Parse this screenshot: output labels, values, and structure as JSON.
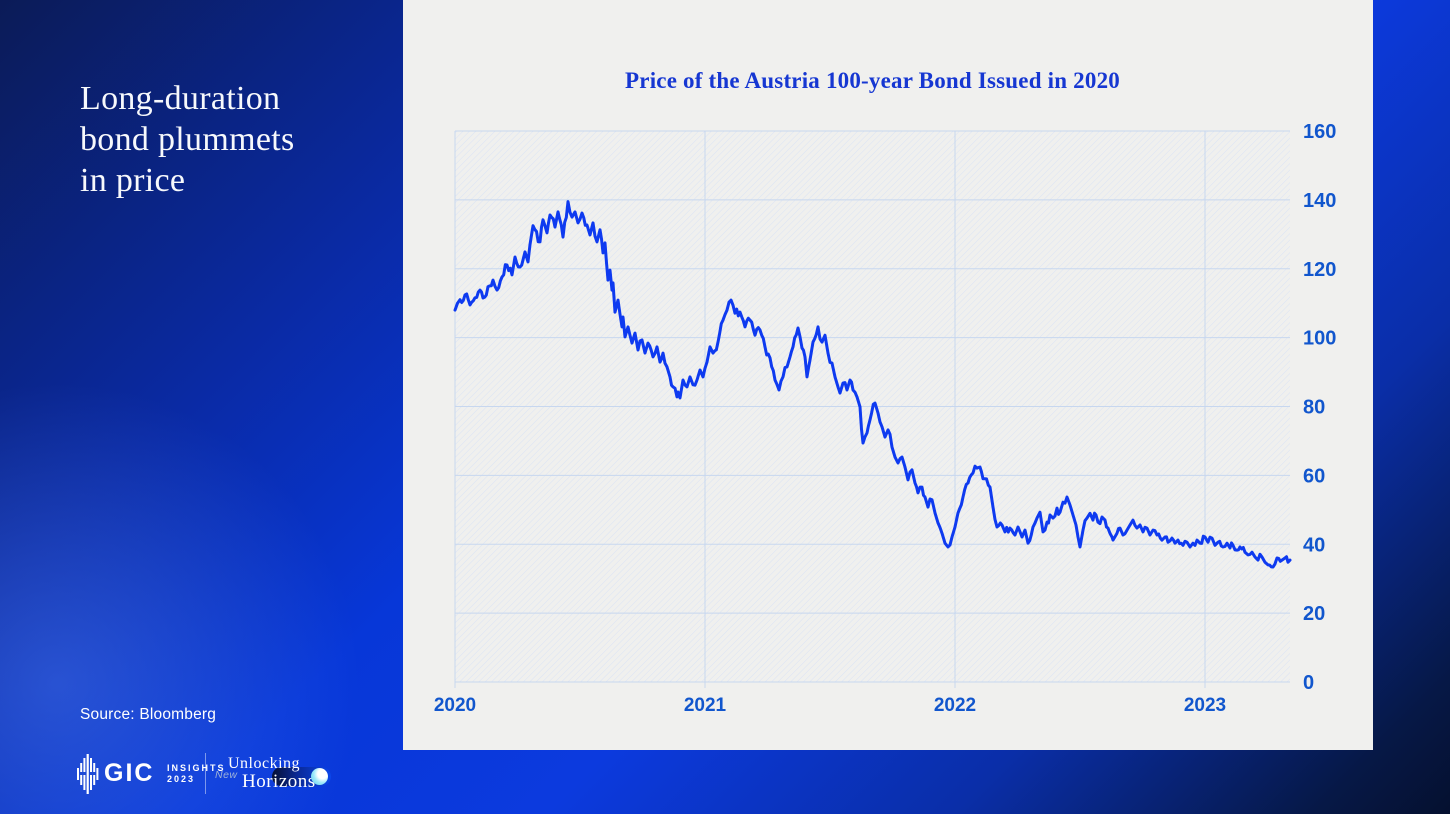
{
  "slide": {
    "headline_lines": [
      "Long-duration",
      "bond plummets",
      "in price"
    ],
    "source": "Source: Bloomberg",
    "footer": {
      "gic_wordmark": "GIC",
      "insights_line1": "INSIGHTS",
      "insights_line2": "2023",
      "tagline_word1": "Unlocking",
      "tagline_word2": "New",
      "tagline_word3": "Horizons"
    },
    "colors": {
      "background_dark": "#0b1b57",
      "background_bright": "#0c3ade",
      "panel_background": "#f0f0ee",
      "headline_text": "#f7f9fc"
    }
  },
  "chart_data": {
    "type": "line",
    "title": "Price of the Austria 100-year Bond Issued in 2020",
    "title_color": "#1637d2",
    "line_color": "#0e3af0",
    "grid_color": "#c7d7ef",
    "hatch_color": "#dbe3f4",
    "axis_label_color": "#1156cd",
    "ylim": [
      0,
      160
    ],
    "y_ticks": [
      0,
      20,
      40,
      60,
      80,
      100,
      120,
      140,
      160
    ],
    "x_ticks_years": [
      2020,
      2021,
      2022,
      2023
    ],
    "x_tick_labels": [
      "2020",
      "2021",
      "2022",
      "2023"
    ],
    "xlim_years": [
      2020.0,
      2023.34
    ],
    "grid": true,
    "legend": "none",
    "noise_amplitude": 1.3,
    "series": [
      {
        "name": "Austria 100-year bond price",
        "points": [
          [
            2020.0,
            108
          ],
          [
            2020.01,
            110
          ],
          [
            2020.02,
            111
          ],
          [
            2020.04,
            112.4
          ],
          [
            2020.06,
            109.5
          ],
          [
            2020.1,
            113.8
          ],
          [
            2020.112,
            111.5
          ],
          [
            2020.152,
            116.7
          ],
          [
            2020.168,
            113.8
          ],
          [
            2020.188,
            117.6
          ],
          [
            2020.208,
            121.1
          ],
          [
            2020.228,
            118.2
          ],
          [
            2020.24,
            123.4
          ],
          [
            2020.26,
            120.5
          ],
          [
            2020.28,
            124.9
          ],
          [
            2020.292,
            122.0
          ],
          [
            2020.3,
            127.0
          ],
          [
            2020.312,
            132.5
          ],
          [
            2020.34,
            127.8
          ],
          [
            2020.352,
            134.2
          ],
          [
            2020.368,
            130.4
          ],
          [
            2020.38,
            135.6
          ],
          [
            2020.4,
            132.1
          ],
          [
            2020.412,
            136.5
          ],
          [
            2020.432,
            129.2
          ],
          [
            2020.452,
            139.5
          ],
          [
            2020.468,
            135.0
          ],
          [
            2020.48,
            136.5
          ],
          [
            2020.492,
            133.3
          ],
          [
            2020.508,
            136.2
          ],
          [
            2020.528,
            132.7
          ],
          [
            2020.54,
            129.8
          ],
          [
            2020.552,
            133.3
          ],
          [
            2020.568,
            127.8
          ],
          [
            2020.58,
            131.3
          ],
          [
            2020.592,
            124.6
          ],
          [
            2020.6,
            127.5
          ],
          [
            2020.612,
            116.7
          ],
          [
            2020.62,
            119.6
          ],
          [
            2020.628,
            113.8
          ],
          [
            2020.632,
            115.9
          ],
          [
            2020.64,
            107.4
          ],
          [
            2020.652,
            110.9
          ],
          [
            2020.668,
            103.1
          ],
          [
            2020.672,
            106.0
          ],
          [
            2020.68,
            100.2
          ],
          [
            2020.692,
            103.1
          ],
          [
            2020.708,
            98.4
          ],
          [
            2020.72,
            101.3
          ],
          [
            2020.732,
            96.4
          ],
          [
            2020.748,
            99.3
          ],
          [
            2020.76,
            95.5
          ],
          [
            2020.772,
            98.4
          ],
          [
            2020.792,
            94.4
          ],
          [
            2020.808,
            97.3
          ],
          [
            2020.82,
            92.9
          ],
          [
            2020.832,
            95.5
          ],
          [
            2020.848,
            91.5
          ],
          [
            2020.86,
            88.6
          ],
          [
            2020.872,
            85.7
          ],
          [
            2020.888,
            82.8
          ],
          [
            2020.892,
            84.2
          ],
          [
            2020.9,
            82.5
          ],
          [
            2020.912,
            87.7
          ],
          [
            2020.928,
            85.7
          ],
          [
            2020.94,
            88.6
          ],
          [
            2020.952,
            86.3
          ],
          [
            2020.968,
            87.7
          ],
          [
            2020.98,
            90.6
          ],
          [
            2020.992,
            88.6
          ],
          [
            2021.008,
            92.9
          ],
          [
            2021.02,
            97.3
          ],
          [
            2021.032,
            95.5
          ],
          [
            2021.052,
            98.7
          ],
          [
            2021.072,
            105.1
          ],
          [
            2021.088,
            108.0
          ],
          [
            2021.104,
            110.9
          ],
          [
            2021.12,
            107.1
          ],
          [
            2021.14,
            107.4
          ],
          [
            2021.16,
            103.1
          ],
          [
            2021.18,
            105.1
          ],
          [
            2021.2,
            100.7
          ],
          [
            2021.22,
            102.2
          ],
          [
            2021.24,
            97.3
          ],
          [
            2021.26,
            94.1
          ],
          [
            2021.28,
            87.7
          ],
          [
            2021.296,
            84.8
          ],
          [
            2021.312,
            88.6
          ],
          [
            2021.328,
            91.5
          ],
          [
            2021.34,
            94.4
          ],
          [
            2021.352,
            97.3
          ],
          [
            2021.372,
            102.8
          ],
          [
            2021.388,
            97.0
          ],
          [
            2021.4,
            94.4
          ],
          [
            2021.408,
            88.6
          ],
          [
            2021.42,
            93.5
          ],
          [
            2021.432,
            98.7
          ],
          [
            2021.452,
            103.1
          ],
          [
            2021.468,
            98.7
          ],
          [
            2021.48,
            100.7
          ],
          [
            2021.492,
            95.5
          ],
          [
            2021.508,
            92.6
          ],
          [
            2021.52,
            88.6
          ],
          [
            2021.532,
            85.7
          ],
          [
            2021.54,
            83.9
          ],
          [
            2021.552,
            86.8
          ],
          [
            2021.568,
            84.8
          ],
          [
            2021.58,
            87.7
          ],
          [
            2021.592,
            84.8
          ],
          [
            2021.608,
            82.8
          ],
          [
            2021.62,
            79.9
          ],
          [
            2021.632,
            69.4
          ],
          [
            2021.648,
            72.3
          ],
          [
            2021.66,
            76.1
          ],
          [
            2021.68,
            81.0
          ],
          [
            2021.692,
            78.1
          ],
          [
            2021.708,
            74.1
          ],
          [
            2021.72,
            71.1
          ],
          [
            2021.732,
            73.2
          ],
          [
            2021.748,
            68.2
          ],
          [
            2021.76,
            65.3
          ],
          [
            2021.772,
            63.6
          ],
          [
            2021.788,
            65.3
          ],
          [
            2021.8,
            62.4
          ],
          [
            2021.812,
            58.7
          ],
          [
            2021.828,
            61.6
          ],
          [
            2021.84,
            57.8
          ],
          [
            2021.852,
            54.9
          ],
          [
            2021.868,
            56.6
          ],
          [
            2021.88,
            53.7
          ],
          [
            2021.892,
            50.8
          ],
          [
            2021.908,
            52.9
          ],
          [
            2021.92,
            49.1
          ],
          [
            2021.932,
            46.2
          ],
          [
            2021.948,
            43.2
          ],
          [
            2021.96,
            40.3
          ],
          [
            2021.972,
            39.2
          ],
          [
            2021.988,
            42.1
          ],
          [
            2022.0,
            45.0
          ],
          [
            2022.012,
            49.1
          ],
          [
            2022.032,
            53.7
          ],
          [
            2022.052,
            57.8
          ],
          [
            2022.072,
            60.7
          ],
          [
            2022.088,
            62.1
          ],
          [
            2022.1,
            62.4
          ],
          [
            2022.112,
            59.0
          ],
          [
            2022.14,
            56.6
          ],
          [
            2022.152,
            50.8
          ],
          [
            2022.168,
            45.0
          ],
          [
            2022.188,
            45.6
          ],
          [
            2022.2,
            43.6
          ],
          [
            2022.22,
            44.7
          ],
          [
            2022.24,
            42.7
          ],
          [
            2022.252,
            45.0
          ],
          [
            2022.268,
            42.1
          ],
          [
            2022.28,
            44.1
          ],
          [
            2022.292,
            40.3
          ],
          [
            2022.312,
            45.0
          ],
          [
            2022.328,
            47.6
          ],
          [
            2022.34,
            49.3
          ],
          [
            2022.352,
            43.6
          ],
          [
            2022.368,
            46.4
          ],
          [
            2022.38,
            48.5
          ],
          [
            2022.392,
            47.6
          ],
          [
            2022.408,
            50.5
          ],
          [
            2022.42,
            49.3
          ],
          [
            2022.432,
            52.2
          ],
          [
            2022.448,
            53.7
          ],
          [
            2022.46,
            51.4
          ],
          [
            2022.472,
            48.5
          ],
          [
            2022.484,
            45.6
          ],
          [
            2022.492,
            42.1
          ],
          [
            2022.5,
            39.2
          ],
          [
            2022.512,
            44.1
          ],
          [
            2022.528,
            47.6
          ],
          [
            2022.54,
            49.0
          ],
          [
            2022.552,
            47.0
          ],
          [
            2022.564,
            48.5
          ],
          [
            2022.572,
            46.4
          ],
          [
            2022.588,
            47.9
          ],
          [
            2022.6,
            47.0
          ],
          [
            2022.612,
            44.7
          ],
          [
            2022.628,
            42.1
          ],
          [
            2022.632,
            41.2
          ],
          [
            2022.648,
            43.2
          ],
          [
            2022.66,
            44.7
          ],
          [
            2022.672,
            42.7
          ],
          [
            2022.688,
            44.1
          ],
          [
            2022.7,
            45.6
          ],
          [
            2022.712,
            47.0
          ],
          [
            2022.728,
            44.7
          ],
          [
            2022.74,
            45.6
          ],
          [
            2022.752,
            43.6
          ],
          [
            2022.768,
            44.7
          ],
          [
            2022.78,
            42.7
          ],
          [
            2022.792,
            44.1
          ],
          [
            2022.808,
            42.7
          ],
          [
            2022.828,
            41.2
          ],
          [
            2022.84,
            42.1
          ],
          [
            2022.852,
            40.6
          ],
          [
            2022.868,
            41.8
          ],
          [
            2022.88,
            40.3
          ],
          [
            2022.892,
            41.2
          ],
          [
            2022.912,
            39.7
          ],
          [
            2022.928,
            40.6
          ],
          [
            2022.94,
            39.2
          ],
          [
            2022.952,
            40.3
          ],
          [
            2022.968,
            41.2
          ],
          [
            2022.98,
            40.3
          ],
          [
            2023.0,
            42.1
          ],
          [
            2023.012,
            40.6
          ],
          [
            2023.028,
            41.8
          ],
          [
            2023.04,
            39.7
          ],
          [
            2023.052,
            40.6
          ],
          [
            2023.072,
            39.2
          ],
          [
            2023.088,
            40.3
          ],
          [
            2023.1,
            38.9
          ],
          [
            2023.112,
            39.7
          ],
          [
            2023.128,
            38.3
          ],
          [
            2023.14,
            39.2
          ],
          [
            2023.16,
            37.7
          ],
          [
            2023.172,
            36.9
          ],
          [
            2023.188,
            37.7
          ],
          [
            2023.2,
            36.3
          ],
          [
            2023.212,
            35.4
          ],
          [
            2023.228,
            36.3
          ],
          [
            2023.24,
            34.8
          ],
          [
            2023.252,
            34.0
          ],
          [
            2023.272,
            33.4
          ],
          [
            2023.288,
            36.0
          ],
          [
            2023.308,
            35.4
          ],
          [
            2023.32,
            36.0
          ],
          [
            2023.332,
            34.8
          ],
          [
            2023.34,
            35.4
          ]
        ]
      }
    ]
  }
}
